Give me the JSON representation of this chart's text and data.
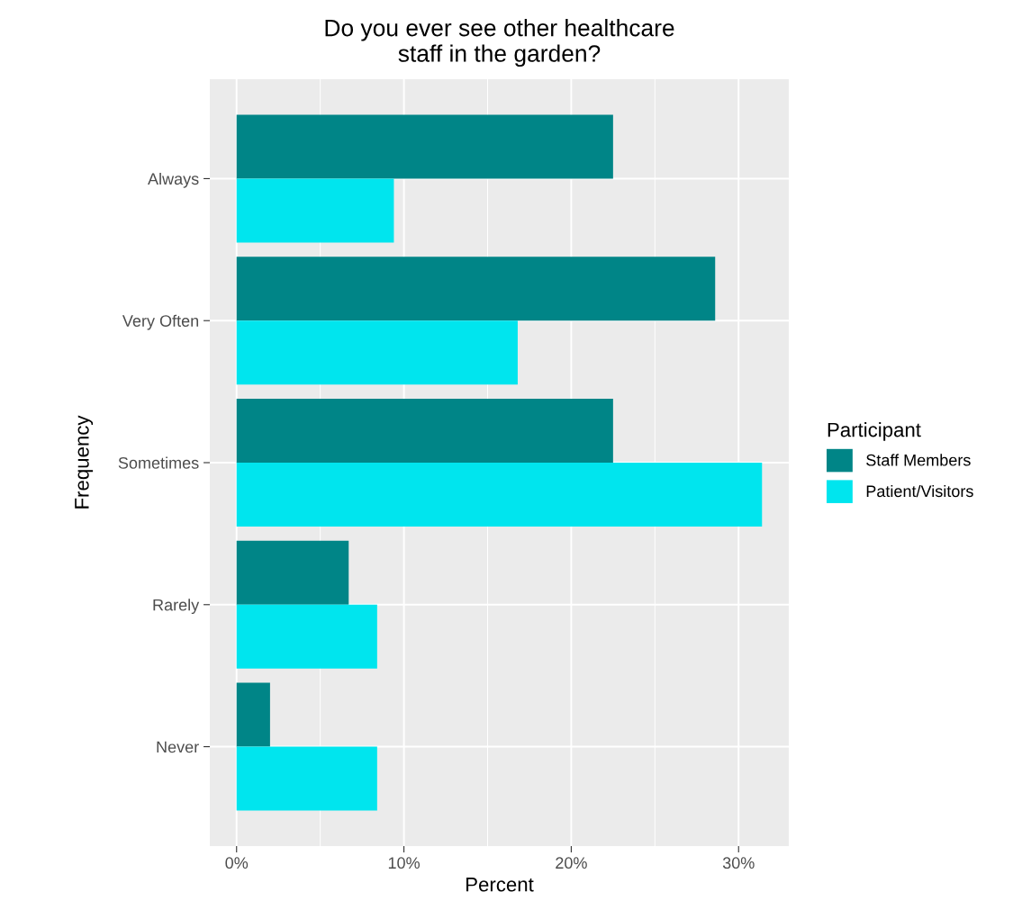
{
  "chart_data": {
    "type": "bar",
    "orientation": "horizontal",
    "title": "Do you ever see other healthcare\nstaff in the garden?",
    "xlabel": "Percent",
    "ylabel": "Frequency",
    "legend_title": "Participant",
    "legend": "right",
    "grid": true,
    "categories": [
      "Always",
      "Very Often",
      "Sometimes",
      "Rarely",
      "Never"
    ],
    "series": [
      {
        "name": "Staff Members",
        "color": "#008587",
        "values": [
          22.5,
          28.6,
          22.5,
          6.7,
          2.0
        ]
      },
      {
        "name": "Patient/Visitors",
        "color": "#00e5ee",
        "values": [
          9.4,
          16.8,
          31.4,
          8.4,
          8.4
        ]
      }
    ],
    "xlim": [
      -1.6,
      33
    ],
    "xticks": [
      {
        "value": 0,
        "label": "0%"
      },
      {
        "value": 5,
        "label": null
      },
      {
        "value": 10,
        "label": "10%"
      },
      {
        "value": 15,
        "label": null
      },
      {
        "value": 20,
        "label": "20%"
      },
      {
        "value": 25,
        "label": null
      },
      {
        "value": 30,
        "label": "30%"
      }
    ]
  }
}
